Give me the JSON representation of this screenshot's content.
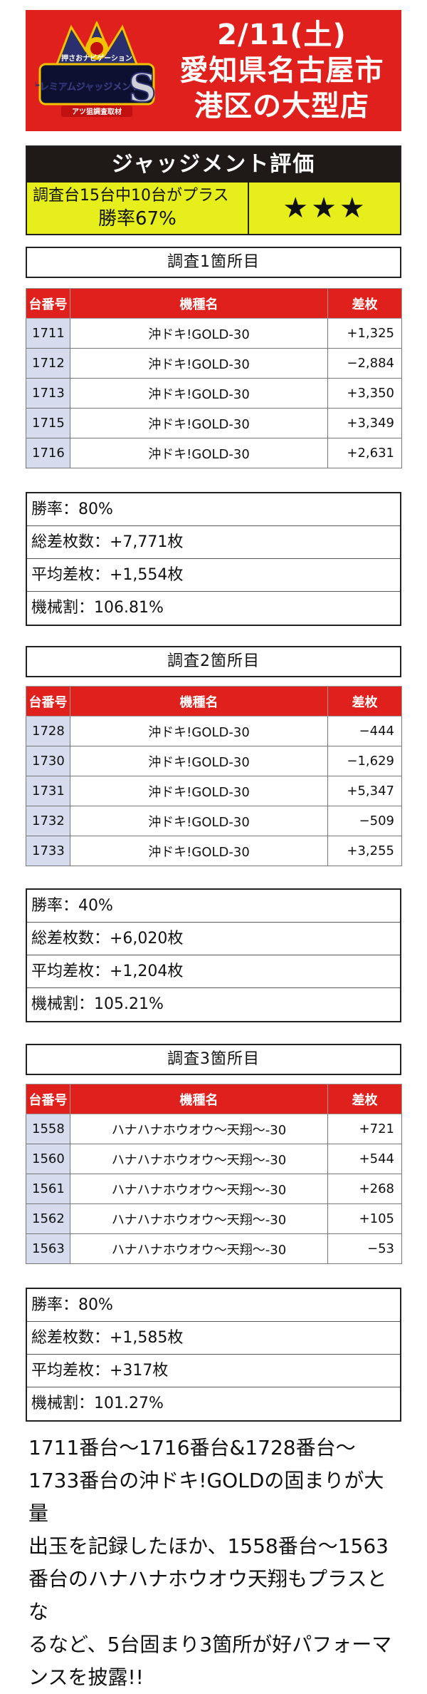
{
  "header": {
    "logo_text_top": "押さおナビゲーション",
    "logo_text_main": "ナレミアムジャッジメント",
    "logo_letter": "S",
    "logo_text_bottom": "アツ狙調査取材",
    "date": "2/11(土)",
    "location_line1": "愛知県名古屋市",
    "location_line2": "港区の大型店"
  },
  "judgement": {
    "title": "ジャッジメント評価",
    "line1": "調査台15台中10台がプラス",
    "line2": "勝率67%",
    "rating": "★★★"
  },
  "columns": {
    "number": "台番号",
    "machine": "機種名",
    "diff": "差枚"
  },
  "sections": [
    {
      "title": "調査1箇所目",
      "rows": [
        {
          "number": "1711",
          "machine": "沖ドキ!GOLD-30",
          "diff": "+1,325"
        },
        {
          "number": "1712",
          "machine": "沖ドキ!GOLD-30",
          "diff": "−2,884"
        },
        {
          "number": "1713",
          "machine": "沖ドキ!GOLD-30",
          "diff": "+3,350"
        },
        {
          "number": "1715",
          "machine": "沖ドキ!GOLD-30",
          "diff": "+3,349"
        },
        {
          "number": "1716",
          "machine": "沖ドキ!GOLD-30",
          "diff": "+2,631"
        }
      ],
      "stats": [
        "勝率：80%",
        "総差枚数：+7,771枚",
        "平均差枚：+1,554枚",
        "機械割：106.81%"
      ]
    },
    {
      "title": "調査2箇所目",
      "rows": [
        {
          "number": "1728",
          "machine": "沖ドキ!GOLD-30",
          "diff": "−444"
        },
        {
          "number": "1730",
          "machine": "沖ドキ!GOLD-30",
          "diff": "−1,629"
        },
        {
          "number": "1731",
          "machine": "沖ドキ!GOLD-30",
          "diff": "+5,347"
        },
        {
          "number": "1732",
          "machine": "沖ドキ!GOLD-30",
          "diff": "−509"
        },
        {
          "number": "1733",
          "machine": "沖ドキ!GOLD-30",
          "diff": "+3,255"
        }
      ],
      "stats": [
        "勝率：40%",
        "総差枚数：+6,020枚",
        "平均差枚：+1,204枚",
        "機械割：105.21%"
      ]
    },
    {
      "title": "調査3箇所目",
      "rows": [
        {
          "number": "1558",
          "machine": "ハナハナホウオウ〜天翔〜-30",
          "diff": "+721"
        },
        {
          "number": "1560",
          "machine": "ハナハナホウオウ〜天翔〜-30",
          "diff": "+544"
        },
        {
          "number": "1561",
          "machine": "ハナハナホウオウ〜天翔〜-30",
          "diff": "+268"
        },
        {
          "number": "1562",
          "machine": "ハナハナホウオウ〜天翔〜-30",
          "diff": "+105"
        },
        {
          "number": "1563",
          "machine": "ハナハナホウオウ〜天翔〜-30",
          "diff": "−53"
        }
      ],
      "stats": [
        "勝率：80%",
        "総差枚数：+1,585枚",
        "平均差枚：+317枚",
        "機械割：101.27%"
      ]
    }
  ],
  "summary": [
    "1711番台〜1716番台&1728番台〜",
    "1733番台の沖ドキ!GOLDの固まりが大量",
    "出玉を記録したほか、1558番台〜1563",
    "番台のハナハナホウオウ天翔もプラスとな",
    "るなど、5台固まり3箇所が好パフォーマ",
    "ンスを披露!!"
  ],
  "colors": {
    "red": "#e0201c",
    "yellow": "#e6ef1c",
    "dark": "#1f1a17",
    "number_cell": "#d6dcee"
  }
}
